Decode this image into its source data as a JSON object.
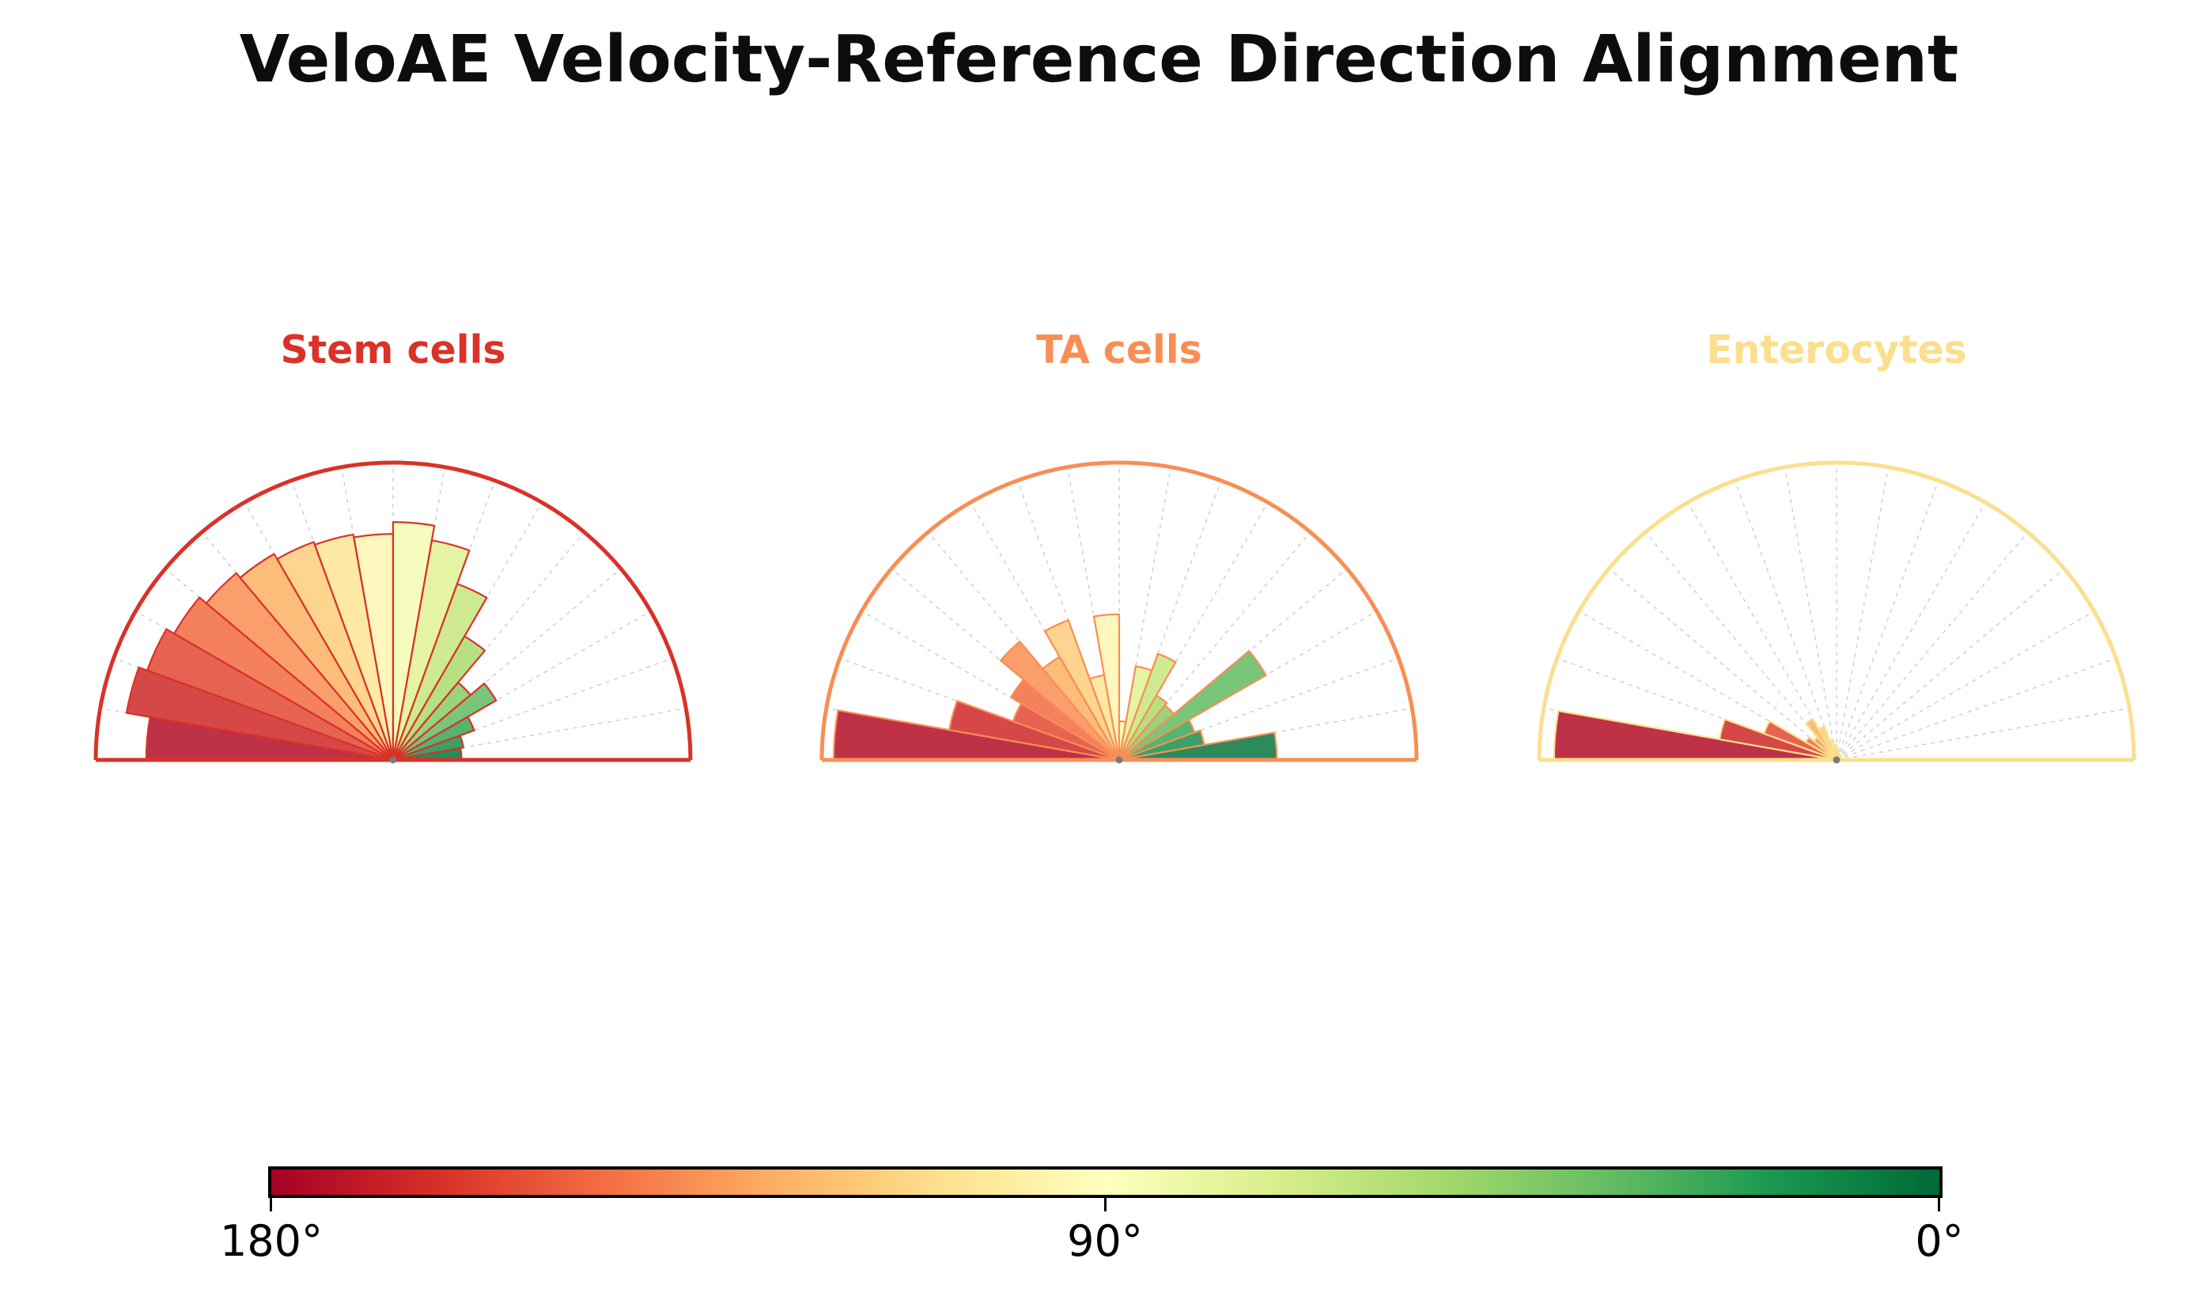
{
  "title": "VeloAE Velocity-Reference Direction Alignment",
  "chart_data": {
    "type": "polar_rose_histogram",
    "title": "VeloAE Velocity-Reference Direction Alignment",
    "subtitle": "",
    "layout": {
      "orientation": "upper_half_circle",
      "angle_range_deg": [
        0,
        180
      ],
      "bin_width_deg": 10,
      "n_bins": 18,
      "r_axis": [
        0,
        1
      ],
      "grid": "radial dashed gridlines every 10 degrees, no radial rings",
      "values_are_fraction_of_max_radius": true,
      "legend_position": "none (colorbar below)"
    },
    "bin_centers_deg": [
      175,
      165,
      155,
      145,
      135,
      125,
      115,
      105,
      95,
      85,
      75,
      65,
      55,
      45,
      35,
      25,
      15,
      5
    ],
    "series": [
      {
        "name": "Stem cells",
        "accent_color": "#D93228",
        "values": [
          0.83,
          0.91,
          0.88,
          0.85,
          0.82,
          0.8,
          0.78,
          0.77,
          0.76,
          0.8,
          0.75,
          0.63,
          0.48,
          0.34,
          0.4,
          0.29,
          0.24,
          0.23
        ]
      },
      {
        "name": "TA cells",
        "accent_color": "#F98E55",
        "values": [
          0.96,
          0.58,
          0.38,
          0.42,
          0.52,
          0.4,
          0.5,
          0.29,
          0.49,
          0.13,
          0.32,
          0.38,
          0.25,
          0.24,
          0.57,
          0.27,
          0.29,
          0.53
        ]
      },
      {
        "name": "Enterocytes",
        "accent_color": "#FBDF8D",
        "values": [
          0.95,
          0.4,
          0.26,
          0.12,
          0.1,
          0.16,
          0.12,
          0.07,
          0.05,
          0.03,
          0.025,
          0.02,
          0.02,
          0.02,
          0.015,
          0.015,
          0.01,
          0.01
        ]
      }
    ],
    "colorbar": {
      "colormap": "RdYlGn",
      "meaning": "angle between velocity and reference direction",
      "tick_labels": [
        "180°",
        "90°",
        "0°"
      ],
      "stops": [
        [
          0.0,
          "#a50026"
        ],
        [
          0.1,
          "#d73027"
        ],
        [
          0.2,
          "#f46d43"
        ],
        [
          0.3,
          "#fdae61"
        ],
        [
          0.4,
          "#fee08b"
        ],
        [
          0.5,
          "#ffffbf"
        ],
        [
          0.6,
          "#d9ef8b"
        ],
        [
          0.7,
          "#a6d96a"
        ],
        [
          0.8,
          "#66bd63"
        ],
        [
          0.9,
          "#1a9850"
        ],
        [
          1.0,
          "#006837"
        ]
      ]
    },
    "style": {
      "bar_fill_opacity": 0.85,
      "gridline_color": "#c9c9c9",
      "center_dot_color": "#7a7a7a",
      "background": "#ffffff"
    }
  }
}
